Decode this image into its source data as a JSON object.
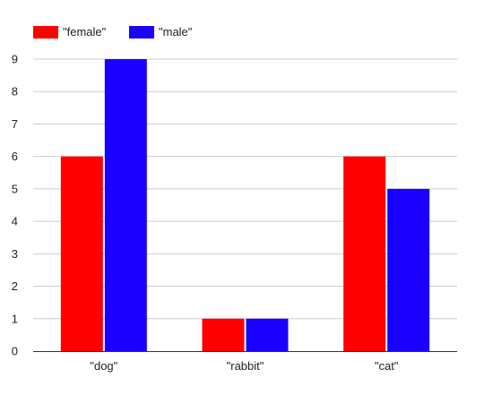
{
  "chart_data": {
    "type": "bar",
    "title": "",
    "xlabel": "",
    "ylabel": "",
    "categories": [
      "\"dog\"",
      "\"rabbit\"",
      "\"cat\""
    ],
    "series": [
      {
        "name": "\"female\"",
        "color": "#ff0000",
        "values": [
          6,
          1,
          6
        ]
      },
      {
        "name": "\"male\"",
        "color": "#1a00ff",
        "values": [
          9,
          1,
          5
        ]
      }
    ],
    "ylim": [
      0,
      9
    ],
    "yticks": [
      "0",
      "1",
      "2",
      "3",
      "4",
      "5",
      "6",
      "7",
      "8",
      "9"
    ],
    "grid": true,
    "legend_position": "top-left"
  }
}
